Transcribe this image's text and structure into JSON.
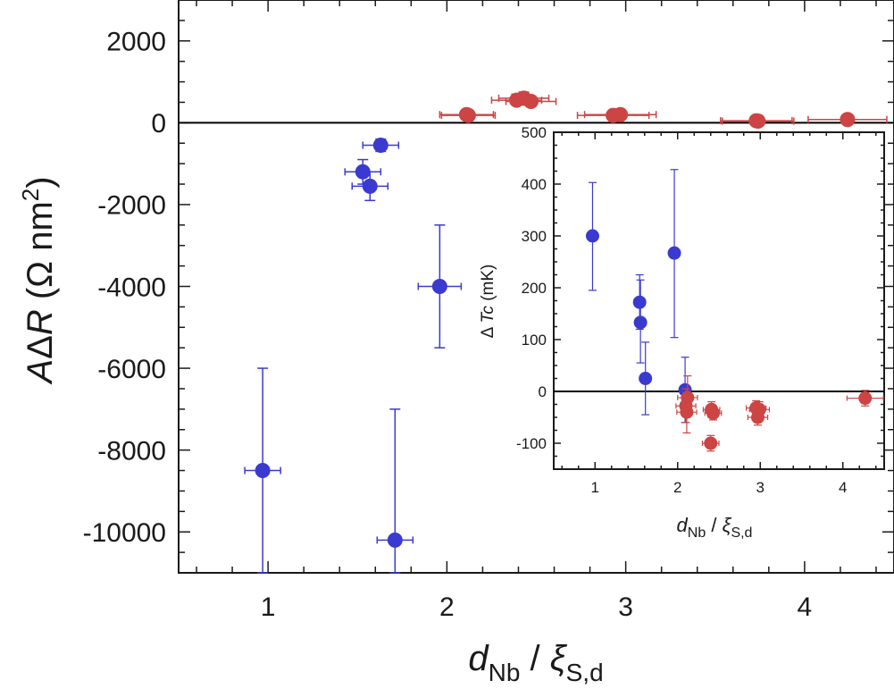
{
  "colors": {
    "blue": "#3a3ad0",
    "red": "#cc4444",
    "axis": "#1a1a1a"
  },
  "chart_data": [
    {
      "id": "main",
      "type": "scatter",
      "xlabel": {
        "var": "d",
        "sub": "Nb",
        "sep": " / ",
        "var2": "ξ",
        "sub2": "S,d"
      },
      "ylabel": {
        "a": "A",
        "delta": "Δ",
        "r": "R",
        "unit": " (Ω nm",
        "sup": "2",
        "close": ")"
      },
      "xlim": [
        0.5,
        4.5
      ],
      "ylim": [
        -11000,
        3000
      ],
      "xticks": [
        1,
        2,
        3,
        4
      ],
      "yticks": [
        2000,
        0,
        -2000,
        -4000,
        -6000,
        -8000,
        -10000
      ],
      "ytick_labels": [
        "2000",
        "0",
        "-2000",
        "-4000",
        "-6000",
        "-8000",
        "-10000"
      ],
      "xtick_labels": [
        "1",
        "2",
        "3",
        "4"
      ],
      "zero_line": true,
      "series": [
        {
          "name": "blue",
          "color": "blue",
          "points": [
            {
              "x": 0.97,
              "y": -8500,
              "xerr": 0.1,
              "ylo": -11000,
              "yhi": -6000
            },
            {
              "x": 1.71,
              "y": -10200,
              "xerr": 0.1,
              "ylo": -11000,
              "yhi": -7000
            },
            {
              "x": 1.53,
              "y": -1200,
              "xerr": 0.1,
              "ylo": -1500,
              "yhi": -900
            },
            {
              "x": 1.57,
              "y": -1550,
              "xerr": 0.1,
              "ylo": -1900,
              "yhi": -1200
            },
            {
              "x": 1.63,
              "y": -550,
              "xerr": 0.1,
              "ylo": -700,
              "yhi": -400
            },
            {
              "x": 1.96,
              "y": -4000,
              "xerr": 0.12,
              "ylo": -5500,
              "yhi": -2500
            }
          ]
        },
        {
          "name": "red",
          "color": "red",
          "points": [
            {
              "x": 2.11,
              "y": 200,
              "xerr": 0.15,
              "ylo": 150,
              "yhi": 250
            },
            {
              "x": 2.12,
              "y": 180,
              "xerr": 0.15,
              "ylo": 130,
              "yhi": 230
            },
            {
              "x": 2.39,
              "y": 550,
              "xerr": 0.14,
              "ylo": 450,
              "yhi": 700
            },
            {
              "x": 2.43,
              "y": 600,
              "xerr": 0.14,
              "ylo": 500,
              "yhi": 750
            },
            {
              "x": 2.47,
              "y": 520,
              "xerr": 0.14,
              "ylo": 420,
              "yhi": 650
            },
            {
              "x": 2.93,
              "y": 180,
              "xerr": 0.2,
              "ylo": 130,
              "yhi": 230
            },
            {
              "x": 2.97,
              "y": 200,
              "xerr": 0.2,
              "ylo": 150,
              "yhi": 250
            },
            {
              "x": 3.73,
              "y": 50,
              "xerr": 0.2,
              "ylo": 20,
              "yhi": 80
            },
            {
              "x": 3.74,
              "y": 40,
              "xerr": 0.2,
              "ylo": 10,
              "yhi": 70
            },
            {
              "x": 4.24,
              "y": 80,
              "xerr": 0.22,
              "ylo": 50,
              "yhi": 110
            }
          ]
        }
      ]
    },
    {
      "id": "inset",
      "type": "scatter",
      "xlabel": {
        "var": "d",
        "sub": "Nb",
        "sep": " / ",
        "var2": "ξ",
        "sub2": "S,d"
      },
      "ylabel": {
        "delta": "Δ",
        "var": "Tc",
        "unit": " (mK)"
      },
      "xlim": [
        0.5,
        4.5
      ],
      "ylim": [
        -150,
        500
      ],
      "xticks": [
        1,
        2,
        3,
        4
      ],
      "xtick_labels": [
        "1",
        "2",
        "3",
        "4"
      ],
      "yticks": [
        500,
        400,
        300,
        200,
        100,
        0,
        -100
      ],
      "ytick_labels": [
        "500",
        "400",
        "300",
        "200",
        "100",
        "0",
        "-100"
      ],
      "zero_line": true,
      "series": [
        {
          "name": "blue",
          "color": "blue",
          "points": [
            {
              "x": 0.97,
              "y": 300,
              "xerr": 0.05,
              "ylo": 195,
              "yhi": 403
            },
            {
              "x": 1.54,
              "y": 172,
              "xerr": 0.05,
              "ylo": 120,
              "yhi": 225
            },
            {
              "x": 1.55,
              "y": 133,
              "xerr": 0.06,
              "ylo": 55,
              "yhi": 215
            },
            {
              "x": 1.61,
              "y": 25,
              "xerr": 0.05,
              "ylo": -45,
              "yhi": 95
            },
            {
              "x": 1.96,
              "y": 267,
              "xerr": 0.06,
              "ylo": 104,
              "yhi": 428
            },
            {
              "x": 2.09,
              "y": 3,
              "xerr": 0.06,
              "ylo": -60,
              "yhi": 66
            }
          ]
        },
        {
          "name": "red",
          "color": "red",
          "points": [
            {
              "x": 2.1,
              "y": -28,
              "xerr": 0.12,
              "ylo": -60,
              "yhi": 5
            },
            {
              "x": 2.11,
              "y": -40,
              "xerr": 0.12,
              "ylo": -80,
              "yhi": -5
            },
            {
              "x": 2.12,
              "y": -12,
              "xerr": 0.12,
              "ylo": -45,
              "yhi": 30
            },
            {
              "x": 2.41,
              "y": -35,
              "xerr": 0.1,
              "ylo": -50,
              "yhi": -20
            },
            {
              "x": 2.43,
              "y": -42,
              "xerr": 0.1,
              "ylo": -55,
              "yhi": -28
            },
            {
              "x": 2.4,
              "y": -100,
              "xerr": 0.1,
              "ylo": -115,
              "yhi": -85
            },
            {
              "x": 2.95,
              "y": -32,
              "xerr": 0.12,
              "ylo": -45,
              "yhi": -18
            },
            {
              "x": 2.97,
              "y": -50,
              "xerr": 0.12,
              "ylo": -65,
              "yhi": -35
            },
            {
              "x": 2.99,
              "y": -35,
              "xerr": 0.12,
              "ylo": -50,
              "yhi": -20
            },
            {
              "x": 4.27,
              "y": -13,
              "xerr": 0.22,
              "ylo": -28,
              "yhi": 2
            }
          ]
        }
      ]
    }
  ]
}
